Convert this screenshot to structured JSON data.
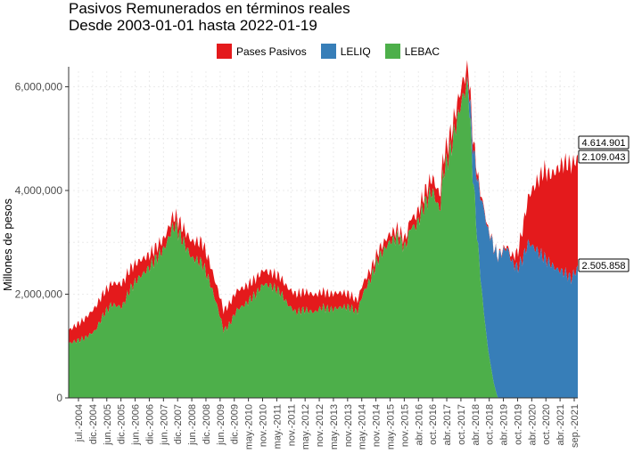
{
  "chart_data": {
    "type": "area",
    "title": "Pasivos Remunerados en términos reales\nDesde 2003-01-01 hasta 2022-01-19",
    "ylabel": "Millones de pesos",
    "xlabel": "",
    "ylim": [
      0,
      6300000
    ],
    "yticks": [
      "0",
      "2,000,000",
      "4,000,000",
      "6,000,000"
    ],
    "xtick_labels": [
      "jul.-2004",
      "dic.-2004",
      "jun.-2005",
      "dic.-2005",
      "jun.-2006",
      "dic.-2006",
      "jun.-2007",
      "dic.-2007",
      "jun.-2008",
      "dic.-2008",
      "jun.-2009",
      "dic.-2009",
      "may.-2010",
      "nov.-2010",
      "may.-2011",
      "nov.-2011",
      "may.-2012",
      "nov.-2012",
      "may.-2013",
      "nov.-2013",
      "may.-2014",
      "nov.-2014",
      "may.-2015",
      "nov.-2015",
      "abr.-2016",
      "oct.-2016",
      "abr.-2017",
      "oct.-2017",
      "abr.-2018",
      "oct.-2018",
      "abr.-2019",
      "oct.-2019",
      "abr.-2020",
      "oct.-2020",
      "abr.-2021",
      "sep.-2021"
    ],
    "x_start": 2003.0,
    "x_end": 2022.05,
    "stacked": true,
    "grid": true,
    "legend_position": "top",
    "series": [
      {
        "name": "Pases Pasivos",
        "color": "#e41a1c",
        "x": [
          2003.0,
          2003.5,
          2004.0,
          2004.5,
          2005.0,
          2005.5,
          2006.0,
          2006.5,
          2007.0,
          2007.5,
          2008.0,
          2008.5,
          2009.0,
          2009.5,
          2010.0,
          2010.5,
          2011.0,
          2011.5,
          2012.0,
          2012.5,
          2013.0,
          2013.5,
          2014.0,
          2014.5,
          2015.0,
          2015.5,
          2016.0,
          2016.5,
          2017.0,
          2017.5,
          2017.9,
          2018.2,
          2018.5,
          2018.8,
          2019.0,
          2019.5,
          2019.8,
          2020.0,
          2020.5,
          2020.8,
          2021.0,
          2021.5,
          2021.8,
          2022.05
        ],
        "values": [
          250000,
          350000,
          450000,
          400000,
          450000,
          350000,
          250000,
          200000,
          200000,
          300000,
          400000,
          350000,
          400000,
          350000,
          300000,
          250000,
          300000,
          350000,
          350000,
          300000,
          300000,
          250000,
          200000,
          150000,
          150000,
          150000,
          200000,
          250000,
          300000,
          300000,
          300000,
          150000,
          50000,
          30000,
          20000,
          50000,
          300000,
          600000,
          1300000,
          1700000,
          1700000,
          2100000,
          2200000,
          2109043
        ]
      },
      {
        "name": "LELIQ",
        "color": "#377eb8",
        "x": [
          2003.0,
          2017.9,
          2018.0,
          2018.1,
          2018.2,
          2018.3,
          2018.4,
          2018.5,
          2018.6,
          2018.7,
          2018.8,
          2018.9,
          2019.0,
          2019.2,
          2019.4,
          2019.6,
          2019.8,
          2020.0,
          2020.2,
          2020.4,
          2020.6,
          2020.8,
          2021.0,
          2021.2,
          2021.4,
          2021.6,
          2021.8,
          2022.05
        ],
        "values": [
          0,
          0,
          300000,
          500000,
          800000,
          1200000,
          1500000,
          1900000,
          2100000,
          2300000,
          2500000,
          2600000,
          2700000,
          2800000,
          2900000,
          2600000,
          2500000,
          2700000,
          3000000,
          2900000,
          2800000,
          2700000,
          2600000,
          2500000,
          2450000,
          2400000,
          2300000,
          2505858
        ]
      },
      {
        "name": "LEBAC",
        "color": "#4daf4a",
        "x": [
          2003.0,
          2003.3,
          2003.6,
          2004.0,
          2004.3,
          2004.6,
          2005.0,
          2005.3,
          2005.6,
          2006.0,
          2006.3,
          2006.6,
          2006.9,
          2007.0,
          2007.3,
          2007.6,
          2008.0,
          2008.3,
          2008.6,
          2008.8,
          2009.0,
          2009.3,
          2009.6,
          2010.0,
          2010.3,
          2010.6,
          2010.9,
          2011.2,
          2011.5,
          2011.8,
          2012.2,
          2012.5,
          2012.8,
          2013.2,
          2013.5,
          2013.8,
          2014.0,
          2014.3,
          2014.6,
          2015.0,
          2015.3,
          2015.6,
          2015.8,
          2016.0,
          2016.3,
          2016.6,
          2016.9,
          2017.0,
          2017.3,
          2017.6,
          2017.8,
          2017.95,
          2018.1,
          2018.3,
          2018.5,
          2018.7,
          2018.9,
          2019.05,
          2022.05
        ],
        "values": [
          1050000,
          1100000,
          1150000,
          1300000,
          1600000,
          1800000,
          1750000,
          2100000,
          2300000,
          2500000,
          2700000,
          2900000,
          3300000,
          3300000,
          3000000,
          2700000,
          2600000,
          2200000,
          1700000,
          1300000,
          1400000,
          1700000,
          1800000,
          2000000,
          2200000,
          2150000,
          2050000,
          1800000,
          1650000,
          1700000,
          1650000,
          1750000,
          1700000,
          1750000,
          1750000,
          1650000,
          2000000,
          2300000,
          2700000,
          3000000,
          3100000,
          2900000,
          3300000,
          3300000,
          3700000,
          4000000,
          3600000,
          4300000,
          4800000,
          5500000,
          5900000,
          6000000,
          4500000,
          3000000,
          1800000,
          900000,
          300000,
          0,
          0
        ]
      }
    ],
    "annotations": [
      "4.614.901",
      "2.109.043",
      "2.505.858"
    ]
  }
}
